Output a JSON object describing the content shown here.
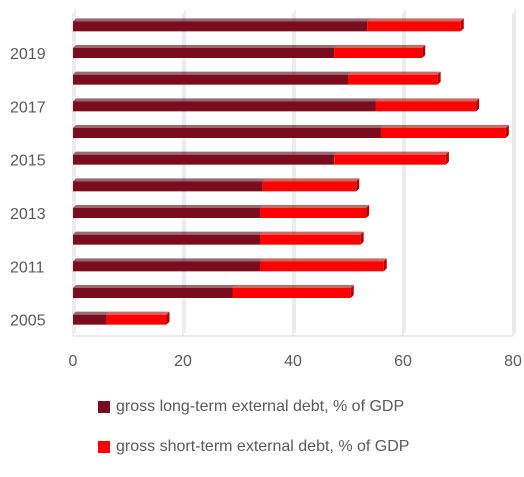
{
  "chart_data": {
    "type": "bar",
    "orientation": "horizontal",
    "stacked": true,
    "categories": [
      "2005",
      "",
      "2011",
      "",
      "2013",
      "",
      "2015",
      "",
      "2017",
      "",
      "2019",
      ""
    ],
    "series": [
      {
        "name": "gross long-term external debt, % of GDP",
        "color": "#7a0c1e",
        "values": [
          6,
          29,
          34,
          34,
          34,
          34.5,
          47.5,
          56,
          55,
          50,
          47.5,
          53.5
        ]
      },
      {
        "name": "gross short-term external debt, % of GDP",
        "color": "#ff0000",
        "values": [
          11,
          21.5,
          22.5,
          18.3,
          19.3,
          17,
          20.3,
          22.7,
          18.3,
          16.3,
          16,
          17
        ]
      }
    ],
    "xlim": [
      0,
      80
    ],
    "xticks": [
      "0",
      "20",
      "40",
      "60",
      "80"
    ],
    "grid": true,
    "legend_position": "bottom"
  }
}
